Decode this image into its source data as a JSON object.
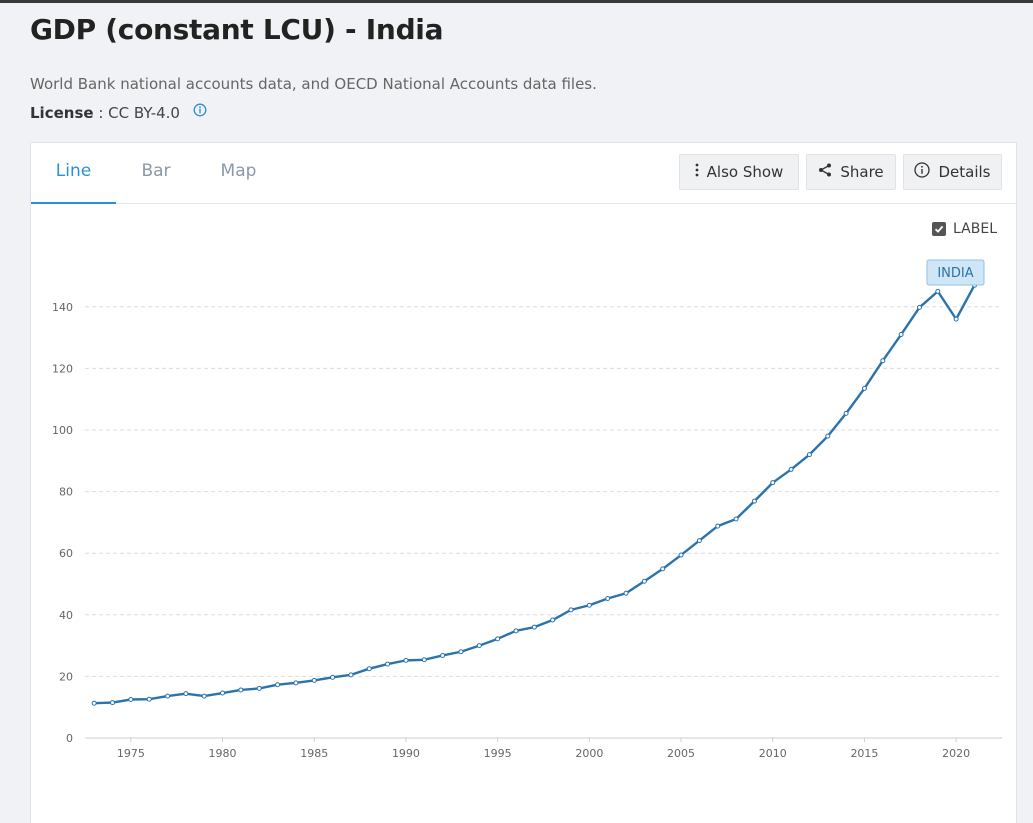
{
  "page": {
    "title": "GDP (constant LCU) - India",
    "source": "World Bank national accounts data, and OECD National Accounts data files.",
    "license_label": "License",
    "license_separator": " : ",
    "license_value": "CC BY-4.0"
  },
  "tabs": [
    {
      "label": "Line",
      "active": true
    },
    {
      "label": "Bar",
      "active": false
    },
    {
      "label": "Map",
      "active": false
    }
  ],
  "toolbar": {
    "also_show": "Also Show",
    "share": "Share",
    "details": "Details"
  },
  "label_toggle": {
    "label": "LABEL",
    "checked": true
  },
  "colors": {
    "line": "#2a73ad",
    "accent": "#2a8fd6",
    "series_label_bg": "#cfe6f7"
  },
  "chart_data": {
    "type": "line",
    "title": "",
    "xlabel": "",
    "ylabel": "",
    "xlim": [
      1972.5,
      2022.5
    ],
    "ylim": [
      0,
      150
    ],
    "x_ticks": [
      1975,
      1980,
      1985,
      1990,
      1995,
      2000,
      2005,
      2010,
      2015,
      2020
    ],
    "y_ticks": [
      0,
      20,
      40,
      60,
      80,
      100,
      120,
      140
    ],
    "grid": true,
    "series": [
      {
        "name": "INDIA",
        "x": [
          1973,
          1974,
          1975,
          1976,
          1977,
          1978,
          1979,
          1980,
          1981,
          1982,
          1983,
          1984,
          1985,
          1986,
          1987,
          1988,
          1989,
          1990,
          1991,
          1992,
          1993,
          1994,
          1995,
          1996,
          1997,
          1998,
          1999,
          2000,
          2001,
          2002,
          2003,
          2004,
          2005,
          2006,
          2007,
          2008,
          2009,
          2010,
          2011,
          2012,
          2013,
          2014,
          2015,
          2016,
          2017,
          2018,
          2019,
          2020,
          2021
        ],
        "values": [
          11.3,
          11.5,
          12.5,
          12.6,
          13.6,
          14.4,
          13.6,
          14.6,
          15.6,
          16.1,
          17.3,
          17.9,
          18.7,
          19.7,
          20.5,
          22.5,
          24.0,
          25.2,
          25.4,
          26.8,
          28.0,
          30.0,
          32.2,
          34.8,
          36.0,
          38.3,
          41.6,
          43.1,
          45.3,
          47.0,
          50.9,
          54.9,
          59.4,
          64.1,
          68.8,
          71.1,
          76.9,
          82.9,
          87.2,
          92.0,
          98.0,
          105.4,
          113.5,
          122.5,
          131.0,
          139.8,
          145.0,
          136.0,
          147.0
        ]
      }
    ]
  }
}
